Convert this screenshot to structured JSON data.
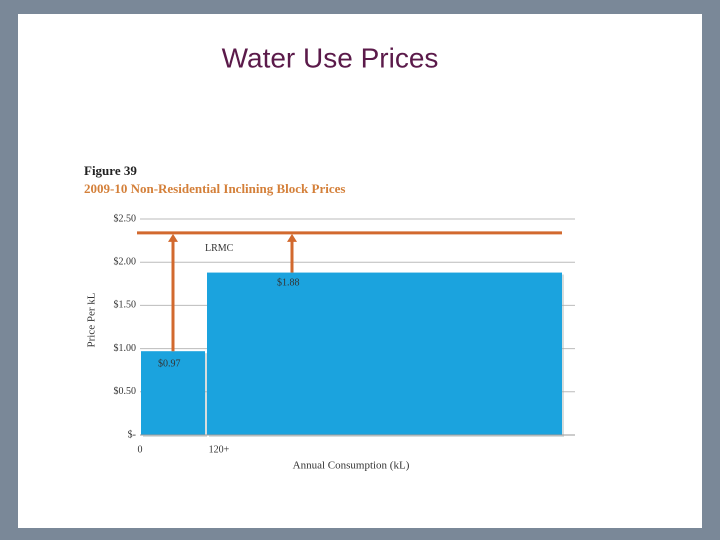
{
  "heading": "Water Use Prices",
  "chart_data": {
    "type": "bar",
    "title": "Figure 39",
    "subtitle": "2009-10 Non-Residential Inclining Block Prices",
    "categories": [
      "0",
      "120+"
    ],
    "values": [
      0.97,
      1.88
    ],
    "value_labels": [
      "$0.97",
      "$1.88"
    ],
    "color": "#1ba3de",
    "ylim": [
      0,
      2.5
    ],
    "yticks": [
      {
        "value": 0,
        "label": "$-"
      },
      {
        "value": 0.5,
        "label": "$0.50"
      },
      {
        "value": 1,
        "label": "$1.00"
      },
      {
        "value": 1.5,
        "label": "$1.50"
      },
      {
        "value": 2,
        "label": "$2.00"
      },
      {
        "value": 2.5,
        "label": "$2.50"
      }
    ],
    "ylabel": "Price Per kL",
    "xlabel": "Annual Consumption (kL)",
    "grid": true,
    "reference_line": {
      "label": "LRMC",
      "value": 2.34,
      "color": "#d2692e"
    }
  }
}
